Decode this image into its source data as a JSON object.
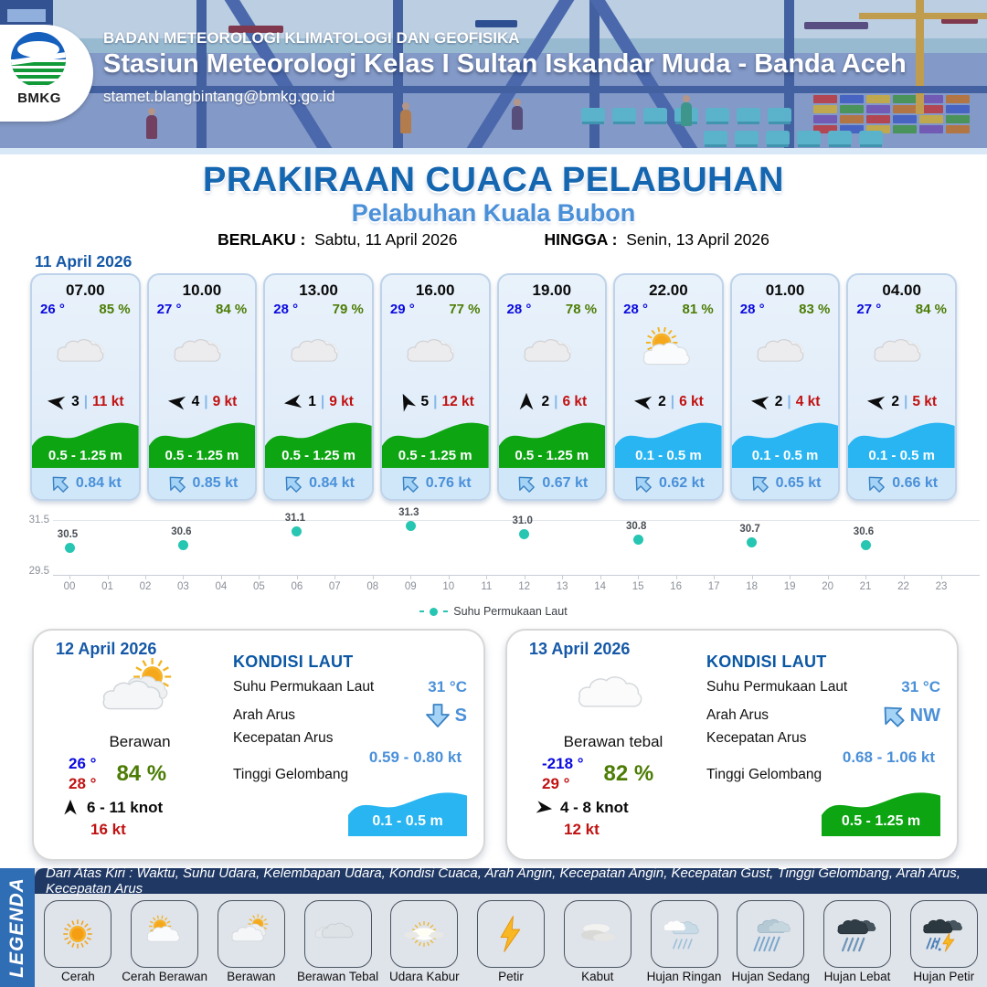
{
  "colors": {
    "accent_blue": "#1566b0",
    "light_blue": "#4a90d9",
    "temp_blue": "#0a0adf",
    "humidity_green": "#4c7c04",
    "gust_red": "#c11212",
    "wave_green": "#0da512",
    "wave_blue": "#29b5f2",
    "chart_teal": "#26c6b2",
    "legend_navy": "#1f3864",
    "legend_blue": "#2f6db5"
  },
  "header": {
    "agency": "BADAN METEOROLOGI KLIMATOLOGI DAN GEOFISIKA",
    "station": "Stasiun Meteorologi Kelas I Sultan Iskandar Muda - Banda Aceh",
    "email": "stamet.blangbintang@bmkg.go.id",
    "logo_text": "BMKG"
  },
  "title": {
    "main": "PRAKIRAAN CUACA PELABUHAN",
    "subtitle": "Pelabuhan Kuala Bubon",
    "berlaku_label": "BERLAKU :",
    "berlaku_value": "Sabtu, 11 April 2026",
    "hingga_label": "HINGGA :",
    "hingga_value": "Senin, 13 April 2026"
  },
  "hourly": {
    "date_label": "11 April 2026",
    "cards": [
      {
        "time": "07.00",
        "temp": "26 °",
        "humidity": "85 %",
        "icon": "cloud",
        "wind_deg": 188,
        "wind_speed": "3",
        "gust": "11 kt",
        "wave": "0.5 - 1.25 m",
        "wave_color": "green",
        "current": "0.84 kt"
      },
      {
        "time": "10.00",
        "temp": "27 °",
        "humidity": "84 %",
        "icon": "cloud",
        "wind_deg": 188,
        "wind_speed": "4",
        "gust": "9 kt",
        "wave": "0.5 - 1.25 m",
        "wave_color": "green",
        "current": "0.85 kt"
      },
      {
        "time": "13.00",
        "temp": "28 °",
        "humidity": "79 %",
        "icon": "cloud",
        "wind_deg": 172,
        "wind_speed": "1",
        "gust": "9 kt",
        "wave": "0.5 - 1.25 m",
        "wave_color": "green",
        "current": "0.84 kt"
      },
      {
        "time": "16.00",
        "temp": "29 °",
        "humidity": "77 %",
        "icon": "cloud",
        "wind_deg": 245,
        "wind_speed": "5",
        "gust": "12 kt",
        "wave": "0.5 - 1.25 m",
        "wave_color": "green",
        "current": "0.76 kt"
      },
      {
        "time": "19.00",
        "temp": "28 °",
        "humidity": "78 %",
        "icon": "cloud",
        "wind_deg": 270,
        "wind_speed": "2",
        "gust": "6 kt",
        "wave": "0.5 - 1.25 m",
        "wave_color": "green",
        "current": "0.67 kt"
      },
      {
        "time": "22.00",
        "temp": "28 °",
        "humidity": "81 %",
        "icon": "sun-cloud",
        "wind_deg": 188,
        "wind_speed": "2",
        "gust": "6 kt",
        "wave": "0.1 - 0.5 m",
        "wave_color": "blue",
        "current": "0.62 kt"
      },
      {
        "time": "01.00",
        "temp": "28 °",
        "humidity": "83 %",
        "icon": "cloud",
        "wind_deg": 188,
        "wind_speed": "2",
        "gust": "4 kt",
        "wave": "0.1 - 0.5 m",
        "wave_color": "blue",
        "current": "0.65 kt"
      },
      {
        "time": "04.00",
        "temp": "27 °",
        "humidity": "84 %",
        "icon": "cloud",
        "wind_deg": 188,
        "wind_speed": "2",
        "gust": "5 kt",
        "wave": "0.1 - 0.5 m",
        "wave_color": "blue",
        "current": "0.66 kt"
      }
    ]
  },
  "chart_data": {
    "type": "scatter",
    "series": [
      {
        "name": "Suhu Permukaan Laut",
        "x": [
          0,
          3,
          6,
          9,
          12,
          15,
          18,
          21
        ],
        "y": [
          30.5,
          30.6,
          31.1,
          31.3,
          31.0,
          30.8,
          30.7,
          30.6
        ]
      }
    ],
    "x_ticks": [
      "00",
      "01",
      "02",
      "03",
      "04",
      "05",
      "06",
      "07",
      "08",
      "09",
      "10",
      "11",
      "12",
      "13",
      "14",
      "15",
      "16",
      "17",
      "18",
      "19",
      "20",
      "21",
      "22",
      "23"
    ],
    "y_ticks": [
      "31.5",
      "29.5"
    ],
    "ylim": [
      29.5,
      31.5
    ],
    "grid": true,
    "legend_position": "bottom",
    "point_color": "#26c6b2"
  },
  "daily": {
    "cards": [
      {
        "date": "12 April 2026",
        "icon": "cloud-sun",
        "condition": "Berawan",
        "temp_min": "26 °",
        "temp_max": "28 °",
        "humidity": "84 %",
        "wind_deg": 270,
        "wind_range": "6 - 11 knot",
        "gust": "16 kt",
        "sea": {
          "title": "KONDISI LAUT",
          "sst_label": "Suhu Permukaan Laut",
          "sst_value": "31 °C",
          "dir_label": "Arah Arus",
          "dir_value": "S",
          "dir_deg": 180,
          "speed_label": "Kecepatan Arus",
          "speed_value": "0.59 - 0.80 kt",
          "wave_label": "Tinggi Gelombang",
          "wave_value": "0.1 - 0.5 m",
          "wave_color": "blue"
        }
      },
      {
        "date": "13 April 2026",
        "icon": "cloud-plain",
        "condition": "Berawan tebal",
        "temp_min": "-218 °",
        "temp_max": "29 °",
        "humidity": "82 %",
        "wind_deg": 8,
        "wind_range": "4 - 8 knot",
        "gust": "12 kt",
        "sea": {
          "title": "KONDISI LAUT",
          "sst_label": "Suhu Permukaan Laut",
          "sst_value": "31 °C",
          "dir_label": "Arah Arus",
          "dir_value": "NW",
          "dir_deg": -45,
          "speed_label": "Kecepatan Arus",
          "speed_value": "0.68 - 1.06 kt",
          "wave_label": "Tinggi Gelombang",
          "wave_value": "0.5 - 1.25 m",
          "wave_color": "green"
        }
      }
    ]
  },
  "legend": {
    "title": "LEGENDA",
    "caption": "Dari Atas Kiri : Waktu, Suhu Udara, Kelembapan Udara, Kondisi Cuaca, Arah Angin, Kecepatan Angin, Kecepatan Gust, Tinggi Gelombang, Arah Arus, Kecepatan Arus",
    "items": [
      {
        "label": "Cerah",
        "icon": "sun"
      },
      {
        "label": "Cerah Berawan",
        "icon": "sun-cloud"
      },
      {
        "label": "Berawan",
        "icon": "cloud-sun"
      },
      {
        "label": "Berawan Tebal",
        "icon": "cloud-thick"
      },
      {
        "label": "Udara Kabur",
        "icon": "haze"
      },
      {
        "label": "Petir",
        "icon": "bolt"
      },
      {
        "label": "Kabut",
        "icon": "fog"
      },
      {
        "label": "Hujan Ringan",
        "icon": "rain-light"
      },
      {
        "label": "Hujan Sedang",
        "icon": "rain-mod"
      },
      {
        "label": "Hujan Lebat",
        "icon": "rain-heavy"
      },
      {
        "label": "Hujan Petir",
        "icon": "rain-bolt"
      }
    ]
  }
}
